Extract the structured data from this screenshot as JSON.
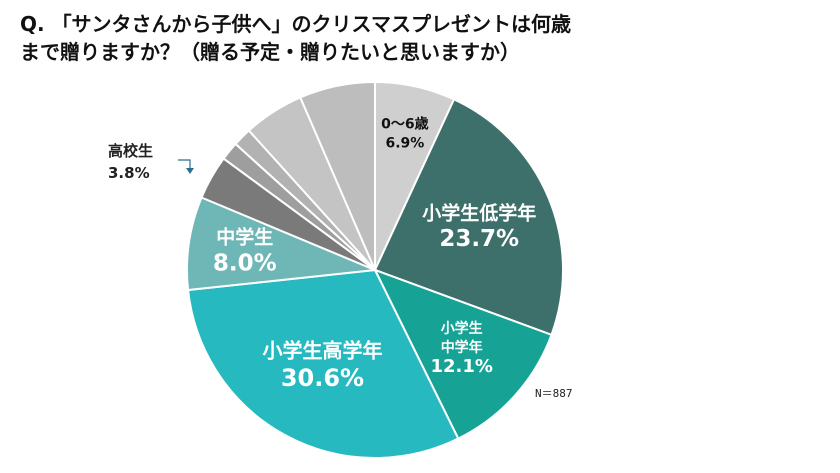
{
  "title": {
    "line1": "Q. 「サンタさんから子供へ」のクリスマスプレゼントは何歳",
    "line2": "まで贈りますか？（贈る予定・贈りたいと思いますか）"
  },
  "note": "N＝887",
  "external_label": {
    "name": "高校生",
    "value": "3.8%"
  },
  "chart_data": {
    "type": "pie",
    "title": "Q. 「サンタさんから子供へ」のクリスマスプレゼントは何歳まで贈りますか？（贈る予定・贈りたいと思いますか）",
    "start": "12 o'clock, clockwise",
    "slices": [
      {
        "label": "0～6歳",
        "value": 6.9,
        "color": "#cfcfcf",
        "label_lines": [
          "0～6歳",
          "6.9%"
        ],
        "label_color": "#111111",
        "label_size": 14
      },
      {
        "label": "小学生低学年",
        "value": 23.7,
        "color": "#3d6f6b",
        "label_lines": [
          "小学生低学年",
          "23.7%"
        ],
        "label_color": "#ffffff",
        "label_size": 19
      },
      {
        "label": "小学生中学年",
        "value": 12.1,
        "color": "#16a396",
        "label_lines": [
          "小学生",
          "中学年",
          "12.1%"
        ],
        "label_color": "#ffffff",
        "label_size": 14
      },
      {
        "label": "小学生高学年",
        "value": 30.6,
        "color": "#27b9c0",
        "label_lines": [
          "小学生高学年",
          "30.6%"
        ],
        "label_color": "#ffffff",
        "label_size": 20
      },
      {
        "label": "中学生",
        "value": 8.0,
        "color": "#6fb7b7",
        "label_lines": [
          "中学生",
          "8.0%"
        ],
        "label_color": "#ffffff",
        "label_size": 19
      },
      {
        "label": "高校生",
        "value": 3.8,
        "color": "#7a7a7a",
        "label_lines": [],
        "label_color": "#ffffff",
        "label_size": 14
      },
      {
        "label": "",
        "value": 1.6,
        "color": "#9e9e9e",
        "label_lines": [],
        "label_color": "#ffffff",
        "label_size": 14
      },
      {
        "label": "",
        "value": 1.6,
        "color": "#b2b2b2",
        "label_lines": [],
        "label_color": "#ffffff",
        "label_size": 14
      },
      {
        "label": "",
        "value": 5.2,
        "color": "#c4c4c4",
        "label_lines": [],
        "label_color": "#ffffff",
        "label_size": 14
      },
      {
        "label": "",
        "value": 6.5,
        "color": "#bdbdbd",
        "label_lines": [],
        "label_color": "#ffffff",
        "label_size": 14
      }
    ]
  }
}
